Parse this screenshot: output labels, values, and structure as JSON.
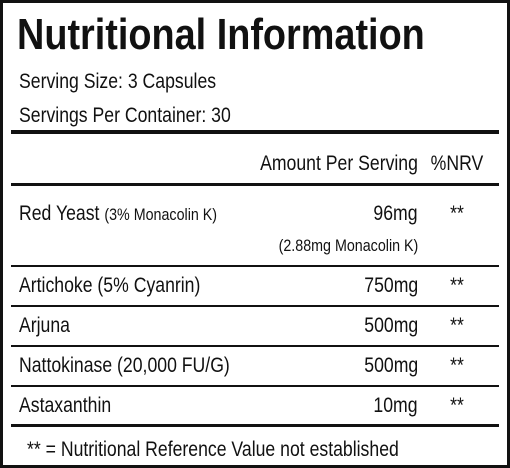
{
  "header": {
    "title": "Nutritional Information",
    "serving_size": "Serving Size: 3 Capsules",
    "servings_per_container": "Servings Per Container: 30"
  },
  "table": {
    "columns": [
      "Amount Per Serving",
      "%NRV"
    ],
    "rows": [
      {
        "name": "Red Yeast",
        "detail": "(3% Monacolin K)",
        "amount": "96mg",
        "sub": "(2.88mg Monacolin K)",
        "nrv": "**"
      },
      {
        "name": "Artichoke (5% Cyanrin)",
        "amount": "750mg",
        "nrv": "**"
      },
      {
        "name": "Arjuna",
        "amount": "500mg",
        "nrv": "**"
      },
      {
        "name": "Nattokinase (20,000 FU/G)",
        "amount": "500mg",
        "nrv": "**"
      },
      {
        "name": "Astaxanthin",
        "amount": "10mg",
        "nrv": "**"
      }
    ]
  },
  "footnote": "** = Nutritional Reference Value not established"
}
